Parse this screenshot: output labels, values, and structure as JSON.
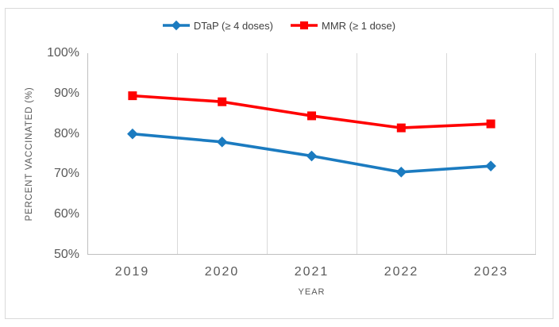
{
  "chart_data": {
    "type": "line",
    "categories": [
      "2019",
      "2020",
      "2021",
      "2022",
      "2023"
    ],
    "series": [
      {
        "name": "DTaP (≥ 4 doses)",
        "marker": "diamond",
        "color": "#1b7bc0",
        "values": [
          80,
          78,
          74.5,
          70.5,
          72
        ]
      },
      {
        "name": "MMR (≥ 1 dose)",
        "marker": "square",
        "color": "#ff0000",
        "values": [
          89.5,
          88,
          84.5,
          81.5,
          82.5
        ]
      }
    ],
    "xlabel": "YEAR",
    "ylabel": "PERCENT VACCINATED (%)",
    "ylim": [
      50,
      100
    ],
    "y_ticks": [
      "100%",
      "90%",
      "80%",
      "70%",
      "60%",
      "50%"
    ],
    "grid": "vertical-only",
    "legend_position": "top-center"
  },
  "colors": {
    "background": "#ffffff",
    "border": "#d9d9d9",
    "gridline": "#d9d9d9",
    "axis_line": "#bfbfbf",
    "axis_text": "#595959",
    "legend_text": "#404040"
  }
}
